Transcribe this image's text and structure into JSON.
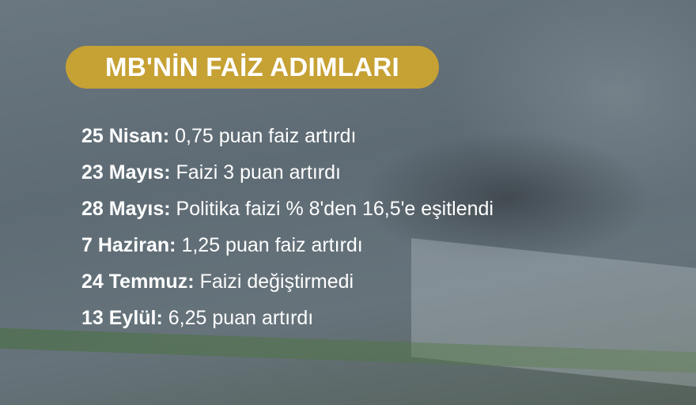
{
  "title": "MB'NİN FAİZ ADIMLARI",
  "colors": {
    "accent": "#c6a134",
    "text": "#ffffff",
    "background": "#5e6b74"
  },
  "items": [
    {
      "date": "25 Nisan:",
      "text": "0,75 puan faiz artırdı"
    },
    {
      "date": "23 Mayıs:",
      "text": "Faizi 3 puan artırdı"
    },
    {
      "date": "28 Mayıs:",
      "text": "Politika faizi % 8'den 16,5'e eşitlendi"
    },
    {
      "date": "7 Haziran:",
      "text": "1,25 puan faiz artırdı"
    },
    {
      "date": "24 Temmuz:",
      "text": "Faizi değiştirmedi"
    },
    {
      "date": "13 Eylül:",
      "text": "6,25 puan artırdı"
    }
  ]
}
